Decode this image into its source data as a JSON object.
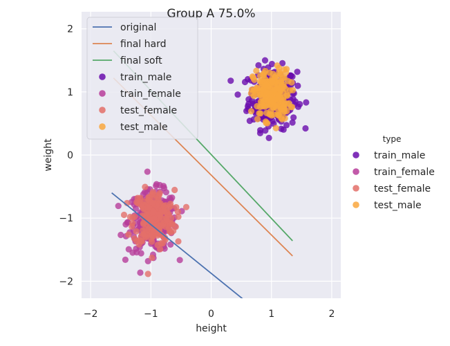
{
  "chart_data": {
    "type": "scatter",
    "title": "Group A 75.0%",
    "xlabel": "height",
    "ylabel": "weight",
    "xlim": [
      -2.15,
      2.15
    ],
    "ylim": [
      -2.27,
      2.27
    ],
    "x_ticks": [
      -2,
      -1,
      0,
      1,
      2
    ],
    "y_ticks": [
      -2,
      -1,
      0,
      1,
      2
    ],
    "x_tick_labels": [
      "−2",
      "−1",
      "0",
      "1",
      "2"
    ],
    "y_tick_labels": [
      "−2",
      "−1",
      "0",
      "1",
      "2"
    ],
    "grid": true,
    "background": "#eaeaf2",
    "lines": [
      {
        "name": "original",
        "color": "#4c72b0",
        "x": [
          -1.65,
          0.55
        ],
        "y": [
          -0.6,
          -2.3
        ]
      },
      {
        "name": "final hard",
        "color": "#dd8452",
        "x": [
          -1.62,
          1.35
        ],
        "y": [
          1.22,
          -1.6
        ]
      },
      {
        "name": "final soft",
        "color": "#55a868",
        "x": [
          -1.62,
          1.35
        ],
        "y": [
          1.65,
          -1.36
        ]
      }
    ],
    "series": [
      {
        "name": "train_male",
        "color": "#6a0dad",
        "center": [
          1.02,
          0.9
        ],
        "spread": [
          0.2,
          0.24
        ],
        "count": 260
      },
      {
        "name": "train_female",
        "color": "#b73d9a",
        "center": [
          -0.97,
          -1.05
        ],
        "spread": [
          0.2,
          0.24
        ],
        "count": 260
      },
      {
        "name": "test_female",
        "color": "#e36f69",
        "center": [
          -0.95,
          -1.0
        ],
        "spread": [
          0.17,
          0.22
        ],
        "count": 220
      },
      {
        "name": "test_male",
        "color": "#f9a73e",
        "center": [
          1.0,
          0.95
        ],
        "spread": [
          0.15,
          0.2
        ],
        "count": 220
      }
    ],
    "inner_legend": {
      "placement": "upper-left",
      "entries": [
        "original",
        "final hard",
        "final soft",
        "train_male",
        "train_female",
        "test_female",
        "test_male"
      ]
    },
    "outer_legend": {
      "placement": "right",
      "title": "type",
      "entries": [
        "train_male",
        "train_female",
        "test_female",
        "test_male"
      ]
    }
  }
}
